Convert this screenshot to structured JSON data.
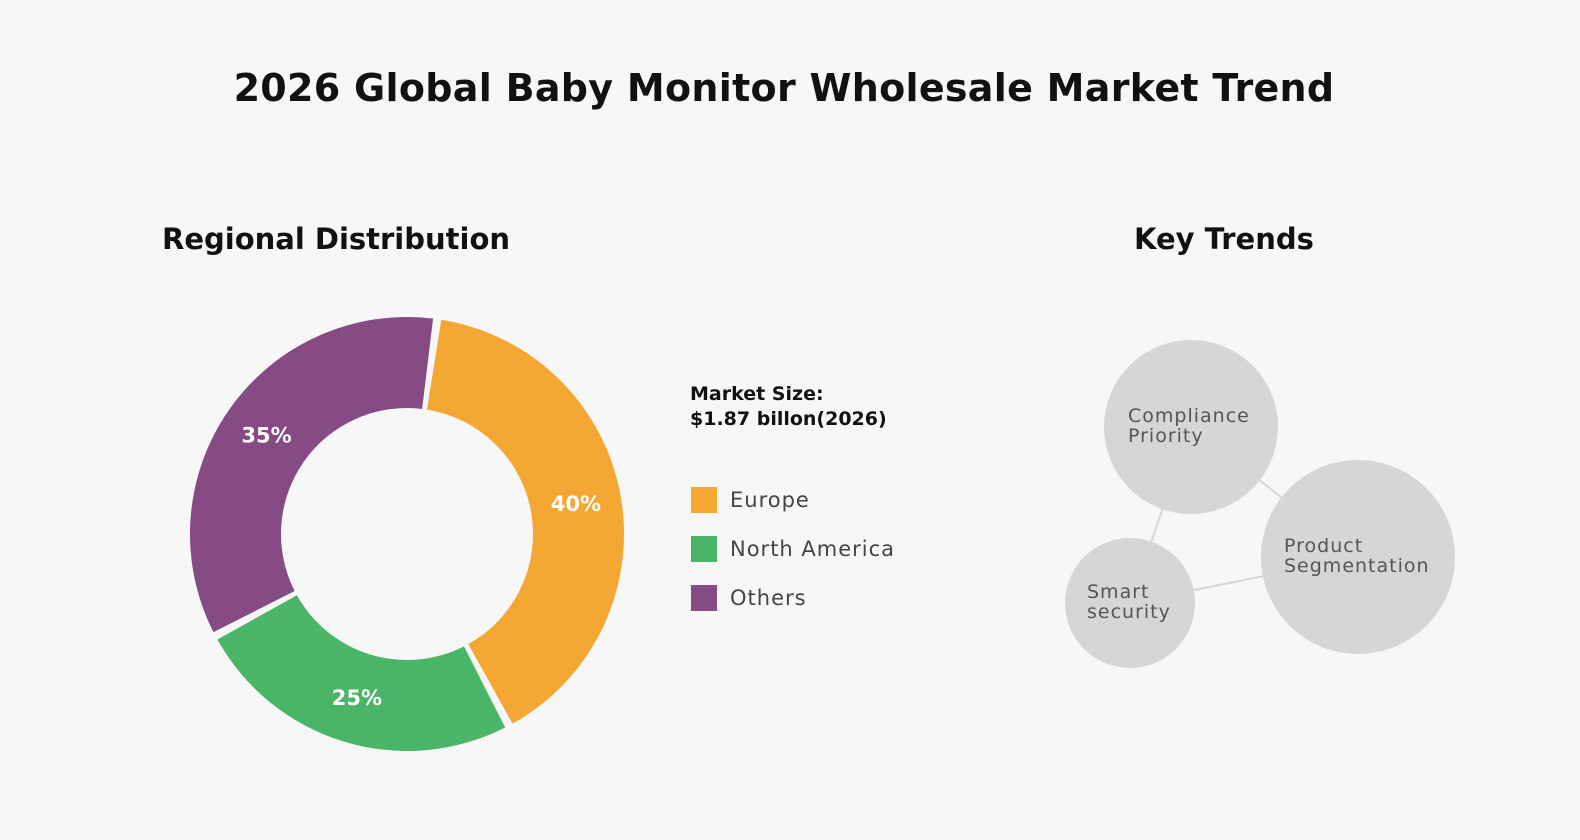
{
  "title": "2026  Global  Baby  Monitor Wholesale Market Trend",
  "colors": {
    "background": "#f7f7f7",
    "europe": "#f5a733",
    "north_america": "#4bb567",
    "others": "#864a85",
    "bubble": "#d6d6d6",
    "bubble_text": "#555555"
  },
  "regional": {
    "title": "Regional Distribution",
    "market_size_label": "Market Size:",
    "market_size_value": "$1.87 billon(2026)"
  },
  "chart_data": {
    "type": "pie",
    "categories": [
      "Europe",
      "North America",
      "Others"
    ],
    "values": [
      40,
      25,
      35
    ],
    "value_labels": [
      "40%",
      "25%",
      "35%"
    ],
    "donut": true,
    "legend": "right"
  },
  "trends": {
    "title": "Key Trends",
    "items": [
      {
        "label_lines": [
          "Compliance",
          "Priority"
        ]
      },
      {
        "label_lines": [
          "Product",
          "Segmentation"
        ]
      },
      {
        "label_lines": [
          "Smart",
          "security"
        ]
      }
    ]
  }
}
